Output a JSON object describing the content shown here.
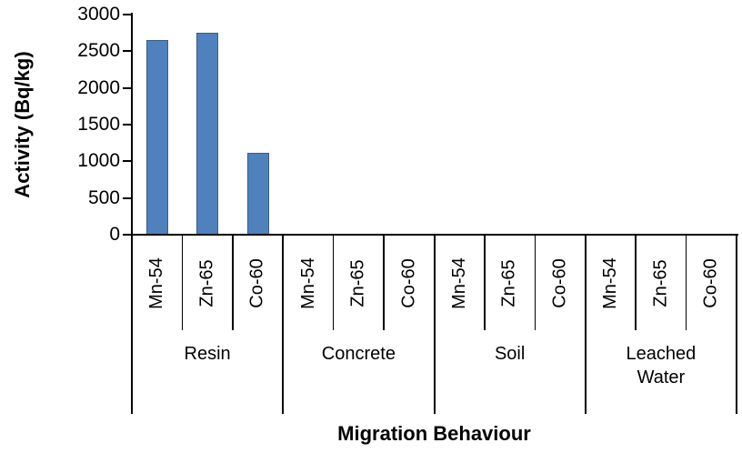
{
  "chart_data": {
    "type": "bar",
    "xlabel": "Migration Behaviour",
    "ylabel": "Activity (Bq/kg)",
    "ylim": [
      0,
      3000
    ],
    "yticks": [
      0,
      500,
      1000,
      1500,
      2000,
      2500,
      3000
    ],
    "grid": false,
    "bar_color": "#4F81BD",
    "bar_border_color": "#385D8A",
    "axis_color": "#000000",
    "background_color": "#FFFFFF",
    "groups": [
      {
        "label": "Resin",
        "categories": [
          "Mn-54",
          "Zn-65",
          "Co-60"
        ],
        "values": [
          2650,
          2750,
          1120
        ]
      },
      {
        "label": "Concrete",
        "categories": [
          "Mn-54",
          "Zn-65",
          "Co-60"
        ],
        "values": [
          0,
          0,
          0
        ]
      },
      {
        "label": "Soil",
        "categories": [
          "Mn-54",
          "Zn-65",
          "Co-60"
        ],
        "values": [
          0,
          0,
          0
        ]
      },
      {
        "label": "Leached Water",
        "categories": [
          "Mn-54",
          "Zn-65",
          "Co-60"
        ],
        "values": [
          0,
          0,
          0
        ]
      }
    ]
  }
}
